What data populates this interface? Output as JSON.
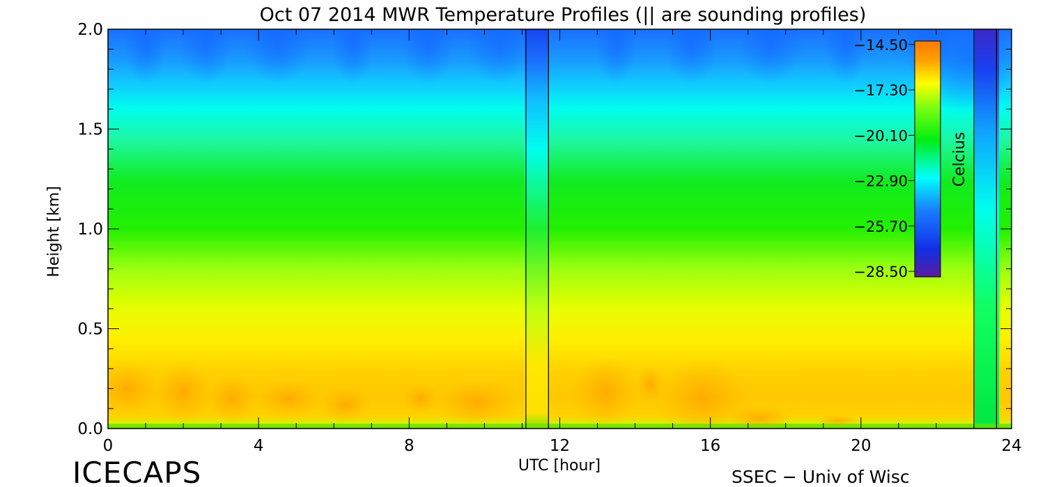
{
  "chart_data": {
    "type": "heatmap",
    "title": "Oct 07 2014 MWR Temperature Profiles (|| are sounding profiles)",
    "xlabel": "UTC [hour]",
    "ylabel": "Height [km]",
    "xlim": [
      0,
      24
    ],
    "ylim": [
      0,
      2.0
    ],
    "x_ticks": [
      "0",
      "4",
      "8",
      "12",
      "16",
      "20",
      "24"
    ],
    "y_ticks": [
      "0.0",
      "0.5",
      "1.0",
      "1.5",
      "2.0"
    ],
    "colorbar": {
      "label": "Celcius",
      "ticks": [
        "-14.50",
        "-17.30",
        "-20.10",
        "-22.90",
        "-25.70",
        "-28.50"
      ],
      "range": [
        -28.5,
        -14.5
      ],
      "colormap": [
        "#5a1c9c",
        "#1030e8",
        "#1a7cff",
        "#00ffff",
        "#00ee10",
        "#7dff10",
        "#ffff00",
        "#ffa000",
        "#ff7a00"
      ]
    },
    "sounding_times_utc": [
      11.1,
      11.7,
      23.0,
      23.6
    ],
    "data_gaps_utc": [
      [
        11.1,
        11.7
      ],
      [
        23.0,
        23.6
      ]
    ],
    "temperature_profile_at_z": {
      "z_km": [
        0.0,
        0.2,
        0.45,
        1.0,
        1.5,
        1.7,
        2.0
      ],
      "temp_c": [
        -18.5,
        -16.5,
        -17.3,
        -20.9,
        -23.5,
        -24.6,
        -26.5
      ]
    },
    "footer": {
      "left": "ICECAPS",
      "right": "SSEC − Univ of Wisc"
    }
  }
}
